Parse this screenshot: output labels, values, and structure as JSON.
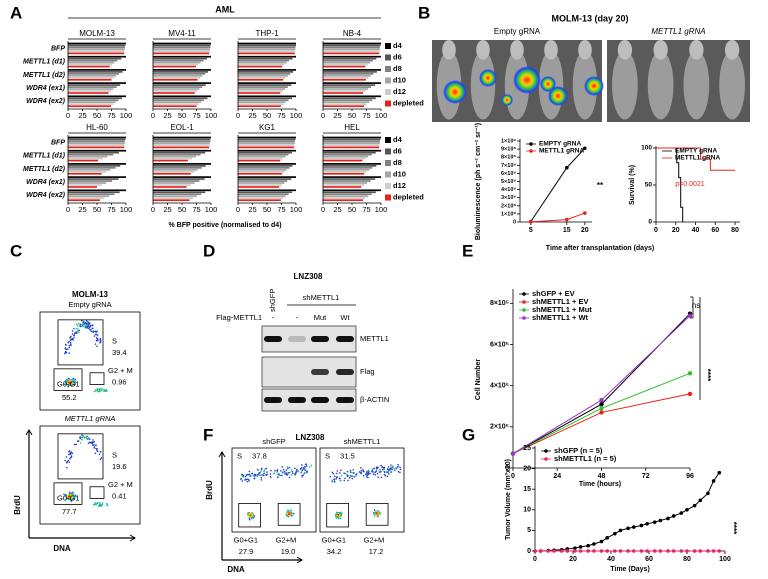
{
  "panel_letters": [
    "A",
    "B",
    "C",
    "D",
    "E",
    "F",
    "G"
  ],
  "chart_data": [
    {
      "type": "grouped-hbar",
      "title": "AML",
      "xlabel": "% BFP positive (normalised to d4)",
      "categories": [
        "BFP",
        "METTL1 (d1)",
        "METTL1 (d2)",
        "WDR4 (ex1)",
        "WDR4 (ex2)"
      ],
      "series": [
        {
          "name": "d4",
          "color": "#000000"
        },
        {
          "name": "d6",
          "color": "#555555"
        },
        {
          "name": "d8",
          "color": "#808080"
        },
        {
          "name": "d10",
          "color": "#a6a6a6"
        },
        {
          "name": "d12",
          "color": "#cccccc"
        },
        {
          "name": "depleted",
          "color": "#e8221b"
        }
      ],
      "xlim": [
        0,
        100
      ],
      "xticks": [
        0,
        25,
        50,
        75,
        100
      ],
      "cell_lines": [
        {
          "name": "MOLM-13",
          "series": [
            [
              100,
              100,
              100,
              100,
              100
            ],
            [
              99,
              92,
              94,
              90,
              93
            ],
            [
              98,
              85,
              88,
              84,
              87
            ],
            [
              98,
              80,
              83,
              78,
              82
            ],
            [
              97,
              76,
              79,
              74,
              78
            ],
            [
              97,
              72,
              75,
              70,
              74
            ]
          ]
        },
        {
          "name": "MV4-11",
          "series": [
            [
              100,
              100,
              100,
              100,
              100
            ],
            [
              99,
              93,
              95,
              91,
              94
            ],
            [
              99,
              87,
              90,
              85,
              88
            ],
            [
              98,
              82,
              85,
              80,
              83
            ],
            [
              98,
              78,
              81,
              76,
              79
            ],
            [
              97,
              74,
              77,
              72,
              75
            ]
          ]
        },
        {
          "name": "THP-1",
          "series": [
            [
              100,
              100,
              100,
              100,
              100
            ],
            [
              100,
              94,
              95,
              92,
              93
            ],
            [
              99,
              88,
              90,
              86,
              87
            ],
            [
              99,
              84,
              86,
              81,
              82
            ],
            [
              98,
              80,
              82,
              77,
              78
            ],
            [
              98,
              76,
              78,
              73,
              74
            ]
          ]
        },
        {
          "name": "NB-4",
          "series": [
            [
              100,
              100,
              100,
              100,
              100
            ],
            [
              99,
              92,
              93,
              90,
              91
            ],
            [
              98,
              86,
              87,
              83,
              85
            ],
            [
              98,
              81,
              82,
              78,
              80
            ],
            [
              97,
              77,
              78,
              73,
              75
            ],
            [
              97,
              73,
              74,
              69,
              71
            ]
          ]
        },
        {
          "name": "HL-60",
          "series": [
            [
              100,
              100,
              100,
              100,
              100
            ],
            [
              99,
              88,
              90,
              87,
              89
            ],
            [
              98,
              78,
              82,
              76,
              80
            ],
            [
              98,
              68,
              73,
              66,
              71
            ],
            [
              97,
              60,
              66,
              58,
              63
            ],
            [
              97,
              52,
              58,
              50,
              55
            ]
          ]
        },
        {
          "name": "EOL-1",
          "series": [
            [
              100,
              100,
              100,
              100,
              100
            ],
            [
              99,
              90,
              91,
              89,
              90
            ],
            [
              99,
              82,
              84,
              80,
              83
            ],
            [
              98,
              74,
              77,
              72,
              76
            ],
            [
              98,
              67,
              71,
              65,
              69
            ],
            [
              97,
              60,
              65,
              58,
              63
            ]
          ]
        },
        {
          "name": "KG1",
          "series": [
            [
              100,
              100,
              100,
              100,
              100
            ],
            [
              99,
              93,
              94,
              92,
              93
            ],
            [
              98,
              87,
              89,
              85,
              87
            ],
            [
              98,
              82,
              84,
              80,
              82
            ],
            [
              97,
              77,
              80,
              75,
              78
            ],
            [
              97,
              73,
              76,
              71,
              74
            ]
          ]
        },
        {
          "name": "HEL",
          "series": [
            [
              100,
              100,
              100,
              100,
              100
            ],
            [
              99,
              91,
              92,
              90,
              91
            ],
            [
              98,
              84,
              85,
              82,
              84
            ],
            [
              98,
              78,
              80,
              76,
              78
            ],
            [
              97,
              73,
              75,
              71,
              73
            ],
            [
              97,
              68,
              71,
              66,
              69
            ]
          ]
        }
      ]
    },
    {
      "type": "line",
      "ylabel": "Bioluminescence (ph s⁻¹ cm⁻² sr⁻¹)",
      "xlabel": "Time after transplantation (days)",
      "x": [
        5,
        15,
        20
      ],
      "xlim": [
        2,
        22
      ],
      "xticks": [
        5,
        15,
        20
      ],
      "ylim": [
        0,
        1000000000
      ],
      "yticks": [
        0,
        {
          "value": 100000000,
          "label": "1×10⁸"
        },
        {
          "value": 200000000,
          "label": "2×10⁸"
        },
        {
          "value": 300000000,
          "label": "3×10⁸"
        },
        {
          "value": 400000000,
          "label": "4×10⁸"
        },
        {
          "value": 500000000,
          "label": "5×10⁸"
        },
        {
          "value": 600000000,
          "label": "6×10⁸"
        },
        {
          "value": 700000000,
          "label": "7×10⁸"
        },
        {
          "value": 800000000,
          "label": "8×10⁸"
        },
        {
          "value": 900000000,
          "label": "9×10⁸"
        },
        {
          "value": 1000000000,
          "label": "1×10⁹"
        }
      ],
      "series": [
        {
          "name": "EMPTY gRNA",
          "color": "#000000",
          "values": [
            5000000,
            670000000,
            910000000
          ]
        },
        {
          "name": "METTL1 gRNA",
          "color": "#e8221b",
          "values": [
            2000000,
            30000000,
            110000000
          ]
        }
      ],
      "markers": true,
      "legend": "upper left",
      "annotations": [
        "**"
      ]
    },
    {
      "type": "step",
      "ylabel": "Survival (%)",
      "xlim": [
        0,
        85
      ],
      "xticks": [
        0,
        20,
        40,
        60,
        80
      ],
      "ylim": [
        0,
        100
      ],
      "yticks": [
        0,
        50,
        100
      ],
      "series": [
        {
          "name": "EMPTY gRNA",
          "color": "#000000",
          "x": [
            0,
            21,
            23,
            25,
            27
          ],
          "values": [
            100,
            80,
            60,
            20,
            0
          ]
        },
        {
          "name": "METTL1 gRNA",
          "color": "#e8221b",
          "x": [
            0,
            45,
            55,
            80
          ],
          "values": [
            100,
            85,
            70,
            70
          ]
        }
      ],
      "markers": false,
      "legend": "upper left",
      "annotations": [
        "p=0.0021"
      ]
    },
    {
      "type": "line",
      "ylabel": "Cell Number",
      "xlabel": "Time (hours)",
      "x": [
        0,
        48,
        96
      ],
      "xlim": [
        0,
        96
      ],
      "xticks": [
        0,
        24,
        48,
        72,
        96
      ],
      "ylim": [
        0,
        860000
      ],
      "yticks": [
        0,
        {
          "value": 200000,
          "label": "2×10⁵"
        },
        {
          "value": 400000,
          "label": "4×10⁵"
        },
        {
          "value": 600000,
          "label": "6×10⁵"
        },
        {
          "value": 800000,
          "label": "8×10⁵"
        }
      ],
      "series": [
        {
          "name": "shGFP + EV",
          "color": "#000000",
          "values": [
            70000,
            310000,
            750000
          ]
        },
        {
          "name": "shMETTL1 + EV",
          "color": "#e8221b",
          "values": [
            70000,
            270000,
            360000
          ]
        },
        {
          "name": "shMETTL1 + Mut",
          "color": "#2fbf2f",
          "values": [
            70000,
            290000,
            460000
          ]
        },
        {
          "name": "shMETTL1 + Wt",
          "color": "#9933cc",
          "values": [
            70000,
            330000,
            740000
          ]
        }
      ],
      "markers": true,
      "legend": "upper left",
      "annotations": [
        "ns",
        "****"
      ]
    },
    {
      "type": "line",
      "ylabel": "Tumor Volume (mm³x10)",
      "xlabel": "Time (Days)",
      "x": [
        0,
        3,
        7,
        10,
        14,
        17,
        21,
        24,
        28,
        31,
        35,
        38,
        42,
        45,
        49,
        52,
        56,
        59,
        63,
        66,
        70,
        73,
        77,
        80,
        84,
        87,
        91,
        94,
        97
      ],
      "xlim": [
        0,
        100
      ],
      "xticks": [
        0,
        20,
        40,
        60,
        80,
        100
      ],
      "ylim": [
        0,
        25
      ],
      "yticks": [
        0,
        5,
        10,
        15,
        20,
        25
      ],
      "series": [
        {
          "name": "shGFP (n = 5)",
          "color": "#000000",
          "values": [
            0,
            0,
            0.1,
            0.2,
            0.3,
            0.5,
            0.7,
            1,
            1.3,
            1.7,
            2.3,
            3.2,
            4.2,
            5,
            5.5,
            5.8,
            6.2,
            6.6,
            7,
            7.4,
            7.9,
            8.5,
            9.2,
            10,
            11,
            12.3,
            14,
            17,
            19
          ]
        },
        {
          "name": "shMETTL1 (n = 5)",
          "color": "#e8226b",
          "values": [
            0,
            0,
            0,
            0,
            0,
            0,
            0,
            0,
            0,
            0,
            0,
            0,
            0,
            0,
            0,
            0,
            0,
            0,
            0,
            0,
            0,
            0,
            0,
            0,
            0,
            0,
            0,
            0,
            0
          ]
        }
      ],
      "markers": true,
      "legend": "upper left",
      "annotations": [
        "****"
      ]
    }
  ],
  "panel_b": {
    "title": "MOLM-13 (day 20)",
    "images": [
      "Empty gRNA",
      "METTL1 gRNA"
    ]
  },
  "panel_c": {
    "title": "MOLM-13",
    "ylabel": "BrdU",
    "xlabel": "DNA",
    "plots": [
      {
        "label": "Empty gRNA",
        "gates": [
          {
            "name": "S",
            "value": "39.4"
          },
          {
            "name": "G2 + M",
            "value": "0.96"
          },
          {
            "name": "G0-G1",
            "value": "55.2"
          }
        ]
      },
      {
        "label": "METTL1 gRNA",
        "gates": [
          {
            "name": "S",
            "value": "19.6"
          },
          {
            "name": "G2 + M",
            "value": "0.41"
          },
          {
            "name": "G0-G1",
            "value": "77.7"
          }
        ]
      }
    ]
  },
  "panel_d": {
    "title": "LNZ308",
    "lanes": [
      "shGFP",
      "shMETTL1"
    ],
    "row_label": "Flag-METTL1",
    "lane_flags": [
      "-",
      "-",
      "Mut",
      "Wt"
    ],
    "bands": [
      "METTL1",
      "Flag",
      "β-ACTIN"
    ]
  },
  "panel_f": {
    "title": "LNZ308",
    "ylabel": "BrdU",
    "xlabel": "DNA",
    "plots": [
      {
        "label": "shGFP",
        "gates": [
          {
            "name": "S",
            "value": "37.8"
          },
          {
            "name": "G0+G1",
            "value": "27.9"
          },
          {
            "name": "G2+M",
            "value": "19.0"
          }
        ]
      },
      {
        "label": "shMETTL1",
        "gates": [
          {
            "name": "S",
            "value": "31.5"
          },
          {
            "name": "G0+G1",
            "value": "34.2"
          },
          {
            "name": "G2+M",
            "value": "17.2"
          }
        ]
      }
    ]
  }
}
